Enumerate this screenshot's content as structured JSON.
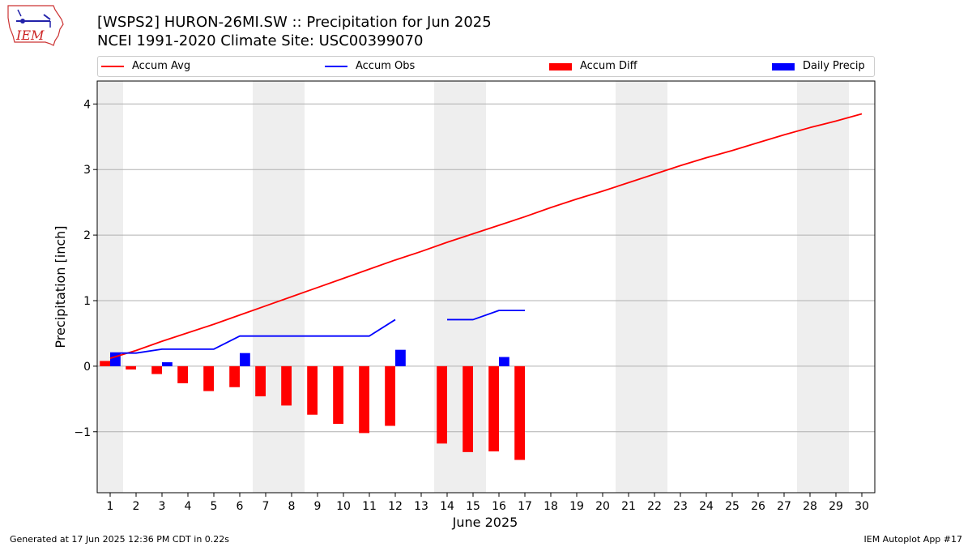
{
  "logo": {
    "icon": "iem-logo",
    "text": "IEM"
  },
  "title": {
    "line1": "[WSPS2] HURON-26MI.SW :: Precipitation for Jun 2025",
    "line2": "NCEI 1991-2020 Climate Site: USC00399070"
  },
  "legend": [
    {
      "label": "Accum Avg",
      "kind": "line",
      "color": "#ff0000"
    },
    {
      "label": "Accum Obs",
      "kind": "line",
      "color": "#0000ff"
    },
    {
      "label": "Accum Diff",
      "kind": "bar",
      "color": "#ff0000"
    },
    {
      "label": "Daily Precip",
      "kind": "bar",
      "color": "#0000ff"
    }
  ],
  "footer": {
    "left": "Generated at 17 Jun 2025 12:36 PM CDT in 0.22s",
    "right": "IEM Autoplot App #17"
  },
  "chart_data": {
    "type": "bar",
    "xlabel": "June 2025",
    "ylabel": "Precipitation [inch]",
    "x": [
      1,
      2,
      3,
      4,
      5,
      6,
      7,
      8,
      9,
      10,
      11,
      12,
      13,
      14,
      15,
      16,
      17,
      18,
      19,
      20,
      21,
      22,
      23,
      24,
      25,
      26,
      27,
      28,
      29,
      30
    ],
    "xlim": [
      0.5,
      30.5
    ],
    "ylim": [
      -1.93,
      4.35
    ],
    "yticks": [
      -1,
      0,
      1,
      2,
      3,
      4
    ],
    "ytick_labels": [
      "−1",
      "0",
      "1",
      "2",
      "3",
      "4"
    ],
    "grid": "horizontal",
    "legend_position": "top",
    "weekend_shading": [
      [
        0.5,
        1.5
      ],
      [
        6.5,
        8.5
      ],
      [
        13.5,
        15.5
      ],
      [
        20.5,
        22.5
      ],
      [
        27.5,
        29.5
      ]
    ],
    "series": [
      {
        "name": "Accum Avg",
        "type": "line",
        "color": "#ff0000",
        "values": [
          0.12,
          0.24,
          0.38,
          0.51,
          0.64,
          0.78,
          0.92,
          1.06,
          1.2,
          1.34,
          1.48,
          1.62,
          1.75,
          1.89,
          2.02,
          2.15,
          2.28,
          2.42,
          2.55,
          2.67,
          2.8,
          2.93,
          3.06,
          3.18,
          3.29,
          3.41,
          3.53,
          3.64,
          3.74,
          3.85
        ]
      },
      {
        "name": "Accum Obs",
        "type": "line",
        "color": "#0000ff",
        "values": [
          0.2,
          0.2,
          0.26,
          0.26,
          0.26,
          0.46,
          0.46,
          0.46,
          0.46,
          0.46,
          0.46,
          0.71,
          null,
          0.71,
          0.71,
          0.85,
          0.85,
          null,
          null,
          null,
          null,
          null,
          null,
          null,
          null,
          null,
          null,
          null,
          null,
          null
        ]
      },
      {
        "name": "Accum Diff",
        "type": "bar",
        "color": "#ff0000",
        "values": [
          0.08,
          -0.05,
          -0.12,
          -0.26,
          -0.38,
          -0.32,
          -0.46,
          -0.6,
          -0.74,
          -0.88,
          -1.02,
          -0.91,
          null,
          -1.18,
          -1.31,
          -1.3,
          -1.43,
          null,
          null,
          null,
          null,
          null,
          null,
          null,
          null,
          null,
          null,
          null,
          null,
          null
        ]
      },
      {
        "name": "Daily Precip",
        "type": "bar",
        "color": "#0000ff",
        "values": [
          0.2,
          0.0,
          0.06,
          0.0,
          0.0,
          0.2,
          0.0,
          0.0,
          0.0,
          0.0,
          0.0,
          0.25,
          null,
          0.0,
          0.0,
          0.14,
          0.0,
          null,
          null,
          null,
          null,
          null,
          null,
          null,
          null,
          null,
          null,
          null,
          null,
          null
        ]
      }
    ]
  }
}
